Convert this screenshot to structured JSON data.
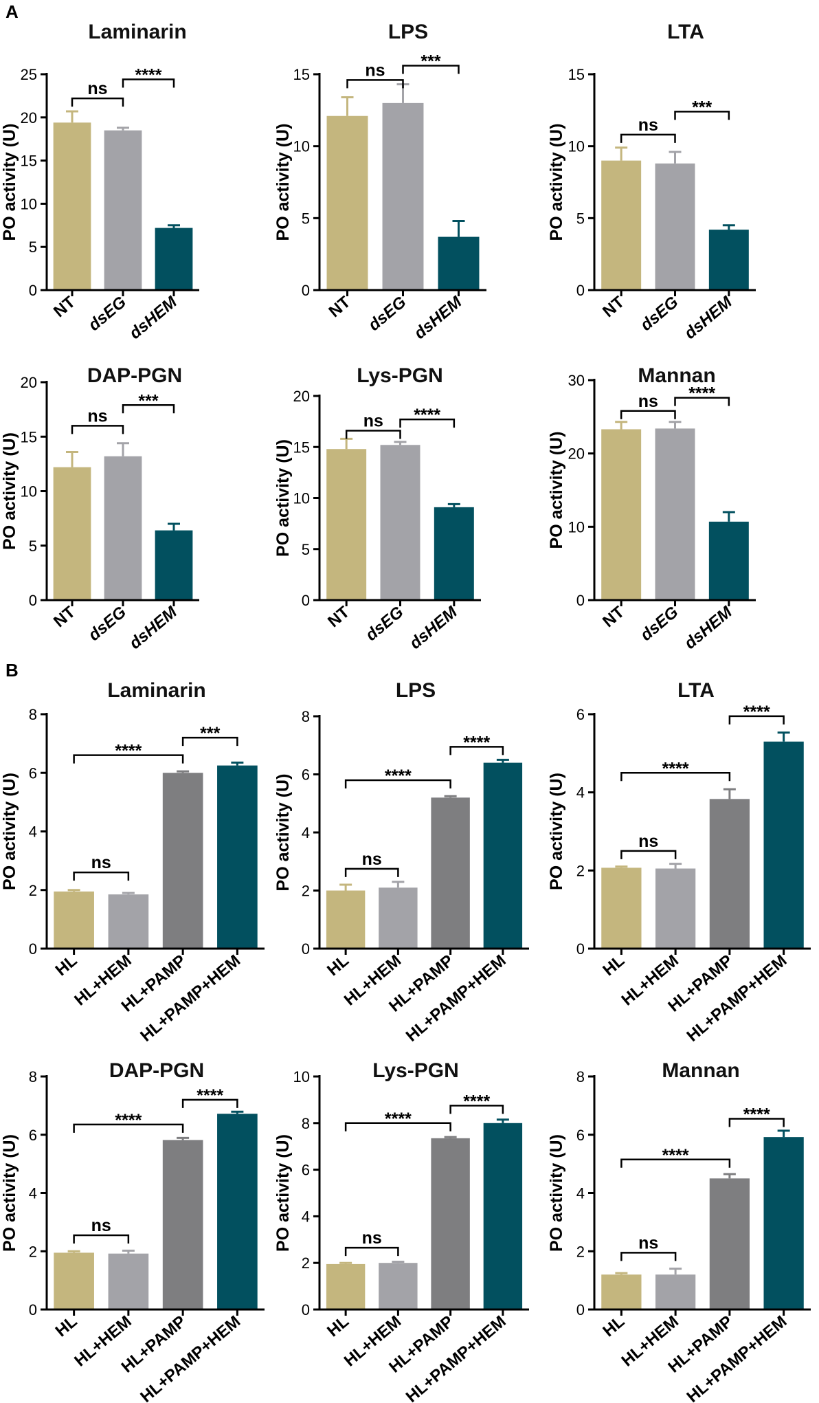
{
  "panel_labels": {
    "a": "A",
    "b": "B"
  },
  "colors": {
    "tan": "#c4b67e",
    "lightgray": "#a3a3a8",
    "darkgray": "#7e7e80",
    "teal": "#02505f"
  },
  "chart_data": [
    {
      "type": "bar",
      "title": "Laminarin",
      "ylabel": "PO activity (U)",
      "ylim": [
        0,
        25
      ],
      "yticks": [
        "0",
        "5",
        "10",
        "15",
        "20",
        "25"
      ],
      "categories": [
        "NT",
        "dsEG",
        "dsHEM"
      ],
      "italic": [
        false,
        true,
        true
      ],
      "values": [
        19.4,
        18.5,
        7.2
      ],
      "errors": [
        1.3,
        0.3,
        0.3
      ],
      "bar_colors": [
        "tan",
        "lightgray",
        "teal"
      ],
      "brackets": [
        {
          "from": 0,
          "to": 1,
          "y": 22.2,
          "label": "ns"
        },
        {
          "from": 1,
          "to": 2,
          "y": 24.4,
          "label": "****"
        }
      ]
    },
    {
      "type": "bar",
      "title": "LPS",
      "ylabel": "PO activity (U)",
      "ylim": [
        0,
        15
      ],
      "yticks": [
        "0",
        "5",
        "10",
        "15"
      ],
      "categories": [
        "NT",
        "dsEG",
        "dsHEM"
      ],
      "italic": [
        false,
        true,
        true
      ],
      "values": [
        12.1,
        13.0,
        3.7
      ],
      "errors": [
        1.3,
        1.3,
        1.1
      ],
      "bar_colors": [
        "tan",
        "lightgray",
        "teal"
      ],
      "brackets": [
        {
          "from": 0,
          "to": 1,
          "y": 14.6,
          "label": "ns"
        },
        {
          "from": 1,
          "to": 2,
          "y": 15.6,
          "label": "***"
        }
      ]
    },
    {
      "type": "bar",
      "title": "LTA",
      "ylabel": "PO activity (U)",
      "ylim": [
        0,
        15
      ],
      "yticks": [
        "0",
        "5",
        "10",
        "15"
      ],
      "categories": [
        "NT",
        "dsEG",
        "dsHEM"
      ],
      "italic": [
        false,
        true,
        true
      ],
      "values": [
        9.0,
        8.8,
        4.2
      ],
      "errors": [
        0.9,
        0.8,
        0.3
      ],
      "bar_colors": [
        "tan",
        "lightgray",
        "teal"
      ],
      "brackets": [
        {
          "from": 0,
          "to": 1,
          "y": 10.8,
          "label": "ns"
        },
        {
          "from": 1,
          "to": 2,
          "y": 12.4,
          "label": "***"
        }
      ]
    },
    {
      "type": "bar",
      "title": "DAP-PGN",
      "ylabel": "PO activity (U)",
      "ylim": [
        0,
        20
      ],
      "yticks": [
        "0",
        "5",
        "10",
        "15",
        "20"
      ],
      "categories": [
        "NT",
        "dsEG",
        "dsHEM"
      ],
      "italic": [
        false,
        true,
        true
      ],
      "values": [
        12.2,
        13.2,
        6.4
      ],
      "errors": [
        1.4,
        1.2,
        0.6
      ],
      "bar_colors": [
        "tan",
        "lightgray",
        "teal"
      ],
      "brackets": [
        {
          "from": 0,
          "to": 1,
          "y": 16.0,
          "label": "ns"
        },
        {
          "from": 1,
          "to": 2,
          "y": 17.9,
          "label": "***"
        }
      ]
    },
    {
      "type": "bar",
      "title": "Lys-PGN",
      "ylabel": "PO activity (U)",
      "ylim": [
        0,
        20
      ],
      "yticks": [
        "0",
        "5",
        "10",
        "15",
        "20"
      ],
      "categories": [
        "NT",
        "dsEG",
        "dsHEM"
      ],
      "italic": [
        false,
        true,
        true
      ],
      "values": [
        14.8,
        15.2,
        9.1
      ],
      "errors": [
        1.0,
        0.3,
        0.3
      ],
      "bar_colors": [
        "tan",
        "lightgray",
        "teal"
      ],
      "brackets": [
        {
          "from": 0,
          "to": 1,
          "y": 16.6,
          "label": "ns"
        },
        {
          "from": 1,
          "to": 2,
          "y": 17.7,
          "label": "****"
        }
      ]
    },
    {
      "type": "bar",
      "title": "Mannan",
      "ylabel": "PO activity (U)",
      "ylim": [
        0,
        30
      ],
      "yticks": [
        "0",
        "10",
        "20",
        "30"
      ],
      "categories": [
        "NT",
        "dsEG",
        "dsHEM"
      ],
      "italic": [
        false,
        true,
        true
      ],
      "values": [
        23.3,
        23.4,
        10.7
      ],
      "errors": [
        1.0,
        0.9,
        1.3
      ],
      "bar_colors": [
        "tan",
        "lightgray",
        "teal"
      ],
      "brackets": [
        {
          "from": 0,
          "to": 1,
          "y": 25.8,
          "label": "ns"
        },
        {
          "from": 1,
          "to": 2,
          "y": 27.6,
          "label": "****"
        }
      ]
    },
    {
      "type": "bar",
      "title": "Laminarin",
      "ylabel": "PO activity (U)",
      "ylim": [
        0,
        8
      ],
      "yticks": [
        "0",
        "2",
        "4",
        "6",
        "8"
      ],
      "categories": [
        "HL",
        "HL+HEM",
        "HL+PAMP",
        "HL+PAMP+HEM"
      ],
      "italic": [
        false,
        false,
        false,
        false
      ],
      "values": [
        1.95,
        1.85,
        6.0,
        6.25
      ],
      "errors": [
        0.05,
        0.05,
        0.05,
        0.1
      ],
      "bar_colors": [
        "tan",
        "lightgray",
        "darkgray",
        "teal"
      ],
      "brackets": [
        {
          "from": 0,
          "to": 1,
          "y": 2.6,
          "label": "ns"
        },
        {
          "from": 0,
          "to": 2,
          "y": 6.6,
          "label": "****"
        },
        {
          "from": 2,
          "to": 3,
          "y": 7.2,
          "label": "***"
        }
      ]
    },
    {
      "type": "bar",
      "title": "LPS",
      "ylabel": "PO activity (U)",
      "ylim": [
        0,
        8
      ],
      "yticks": [
        "0",
        "2",
        "4",
        "6",
        "8"
      ],
      "categories": [
        "HL",
        "HL+HEM",
        "HL+PAMP",
        "HL+PAMP+HEM"
      ],
      "italic": [
        false,
        false,
        false,
        false
      ],
      "values": [
        2.0,
        2.1,
        5.2,
        6.4
      ],
      "errors": [
        0.2,
        0.2,
        0.05,
        0.1
      ],
      "bar_colors": [
        "tan",
        "lightgray",
        "darkgray",
        "teal"
      ],
      "brackets": [
        {
          "from": 0,
          "to": 1,
          "y": 2.75,
          "label": "ns"
        },
        {
          "from": 0,
          "to": 2,
          "y": 5.8,
          "label": "****"
        },
        {
          "from": 2,
          "to": 3,
          "y": 6.95,
          "label": "****"
        }
      ]
    },
    {
      "type": "bar",
      "title": "LTA",
      "ylabel": "PO activity (U)",
      "ylim": [
        0,
        6
      ],
      "yticks": [
        "0",
        "2",
        "4",
        "6"
      ],
      "categories": [
        "HL",
        "HL+HEM",
        "HL+PAMP",
        "HL+PAMP+HEM"
      ],
      "italic": [
        false,
        false,
        false,
        false
      ],
      "values": [
        2.07,
        2.05,
        3.83,
        5.3
      ],
      "errors": [
        0.03,
        0.12,
        0.25,
        0.23
      ],
      "bar_colors": [
        "tan",
        "lightgray",
        "darkgray",
        "teal"
      ],
      "brackets": [
        {
          "from": 0,
          "to": 1,
          "y": 2.5,
          "label": "ns"
        },
        {
          "from": 0,
          "to": 2,
          "y": 4.5,
          "label": "****"
        },
        {
          "from": 2,
          "to": 3,
          "y": 5.95,
          "label": "****"
        }
      ]
    },
    {
      "type": "bar",
      "title": "DAP-PGN",
      "ylabel": "PO activity (U)",
      "ylim": [
        0,
        8
      ],
      "yticks": [
        "0",
        "2",
        "4",
        "6",
        "8"
      ],
      "categories": [
        "HL",
        "HL+HEM",
        "HL+PAMP",
        "HL+PAMP+HEM"
      ],
      "italic": [
        false,
        false,
        false,
        false
      ],
      "values": [
        1.95,
        1.92,
        5.82,
        6.72
      ],
      "errors": [
        0.05,
        0.1,
        0.07,
        0.07
      ],
      "bar_colors": [
        "tan",
        "lightgray",
        "darkgray",
        "teal"
      ],
      "brackets": [
        {
          "from": 0,
          "to": 1,
          "y": 2.55,
          "label": "ns"
        },
        {
          "from": 0,
          "to": 2,
          "y": 6.35,
          "label": "****"
        },
        {
          "from": 2,
          "to": 3,
          "y": 7.2,
          "label": "****"
        }
      ]
    },
    {
      "type": "bar",
      "title": "Lys-PGN",
      "ylabel": "PO activity (U)",
      "ylim": [
        0,
        10
      ],
      "yticks": [
        "0",
        "2",
        "4",
        "6",
        "8",
        "10"
      ],
      "categories": [
        "HL",
        "HL+HEM",
        "HL+PAMP",
        "HL+PAMP+HEM"
      ],
      "italic": [
        false,
        false,
        false,
        false
      ],
      "values": [
        1.95,
        2.0,
        7.35,
        8.0
      ],
      "errors": [
        0.05,
        0.05,
        0.05,
        0.15
      ],
      "bar_colors": [
        "tan",
        "lightgray",
        "darkgray",
        "teal"
      ],
      "brackets": [
        {
          "from": 0,
          "to": 1,
          "y": 2.65,
          "label": "ns"
        },
        {
          "from": 0,
          "to": 2,
          "y": 8.0,
          "label": "****"
        },
        {
          "from": 2,
          "to": 3,
          "y": 8.75,
          "label": "****"
        }
      ]
    },
    {
      "type": "bar",
      "title": "Mannan",
      "ylabel": "PO activity (U)",
      "ylim": [
        0,
        8
      ],
      "yticks": [
        "0",
        "2",
        "4",
        "6",
        "8"
      ],
      "categories": [
        "HL",
        "HL+HEM",
        "HL+PAMP",
        "HL+PAMP+HEM"
      ],
      "italic": [
        false,
        false,
        false,
        false
      ],
      "values": [
        1.2,
        1.2,
        4.5,
        5.92
      ],
      "errors": [
        0.05,
        0.2,
        0.15,
        0.22
      ],
      "bar_colors": [
        "tan",
        "lightgray",
        "darkgray",
        "teal"
      ],
      "brackets": [
        {
          "from": 0,
          "to": 1,
          "y": 1.95,
          "label": "ns"
        },
        {
          "from": 0,
          "to": 2,
          "y": 5.15,
          "label": "****"
        },
        {
          "from": 2,
          "to": 3,
          "y": 6.55,
          "label": "****"
        }
      ]
    }
  ]
}
